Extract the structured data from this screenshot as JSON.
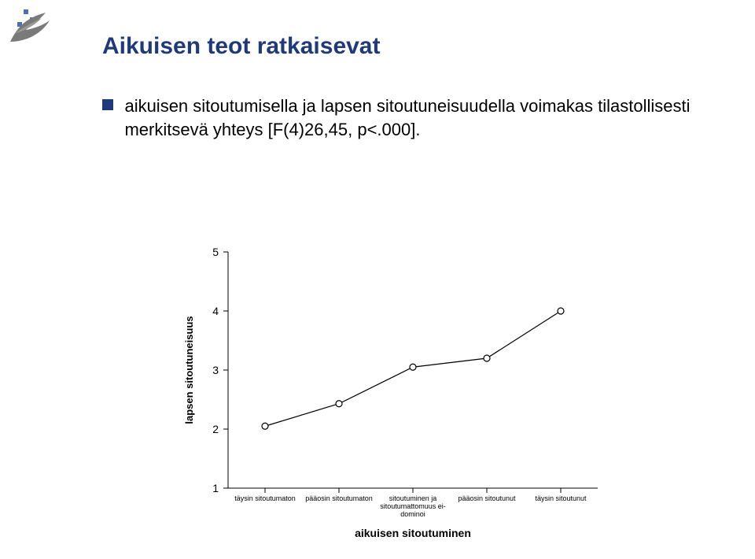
{
  "title": "Aikuisen teot ratkaisevat",
  "bullet": {
    "text": "aikuisen sitoutumisella ja lapsen sitoutuneisuudella voimakas tilastollisesti merkitsevä yhteys [F(4)26,45, p<.000]."
  },
  "chart": {
    "type": "line",
    "background_color": "#ffffff",
    "axis_color": "#000000",
    "series_color": "#000000",
    "marker_fill": "#ffffff",
    "marker_stroke": "#000000",
    "line_width": 1.2,
    "marker_radius": 4,
    "ylabel": "lapsen sitoutuneisuus",
    "xlabel": "aikuisen sitoutuminen",
    "ylabel_fontsize": 13,
    "xlabel_fontsize": 14,
    "ytick_fontsize": 14,
    "xtick_fontsize": 9,
    "ylim": [
      1,
      5
    ],
    "ytick_step": 1,
    "categories": [
      "täysin sitoutumaton",
      "pääosin sitoutumaton",
      "sitoutuminen ja\nsitoutumattomuus ei-\ndominoi",
      "pääosin sitoutunut",
      "täysin sitoutunut"
    ],
    "values": [
      2.05,
      2.43,
      3.05,
      3.2,
      4.0
    ]
  }
}
